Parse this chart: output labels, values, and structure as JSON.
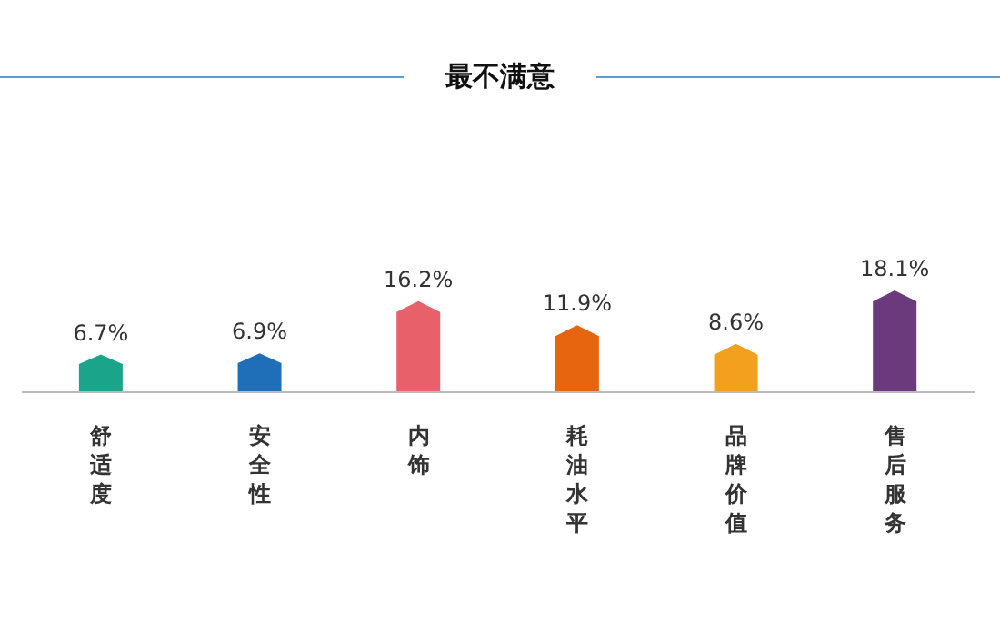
{
  "chart_data": {
    "type": "bar",
    "title": "最不满意",
    "categories": [
      "舒适度",
      "安全性",
      "内饰",
      "耗油水平",
      "品牌价值",
      "售后服务"
    ],
    "values": [
      6.7,
      6.9,
      16.2,
      11.9,
      8.6,
      18.1
    ],
    "colors": [
      "#1aa58a",
      "#1f6fb8",
      "#e8606a",
      "#e8650f",
      "#f2a01e",
      "#6b3a7d"
    ],
    "value_labels": [
      "6.7%",
      "6.9%",
      "16.2%",
      "11.9%",
      "8.6%",
      "18.1%"
    ],
    "grid": false,
    "legend": false
  }
}
